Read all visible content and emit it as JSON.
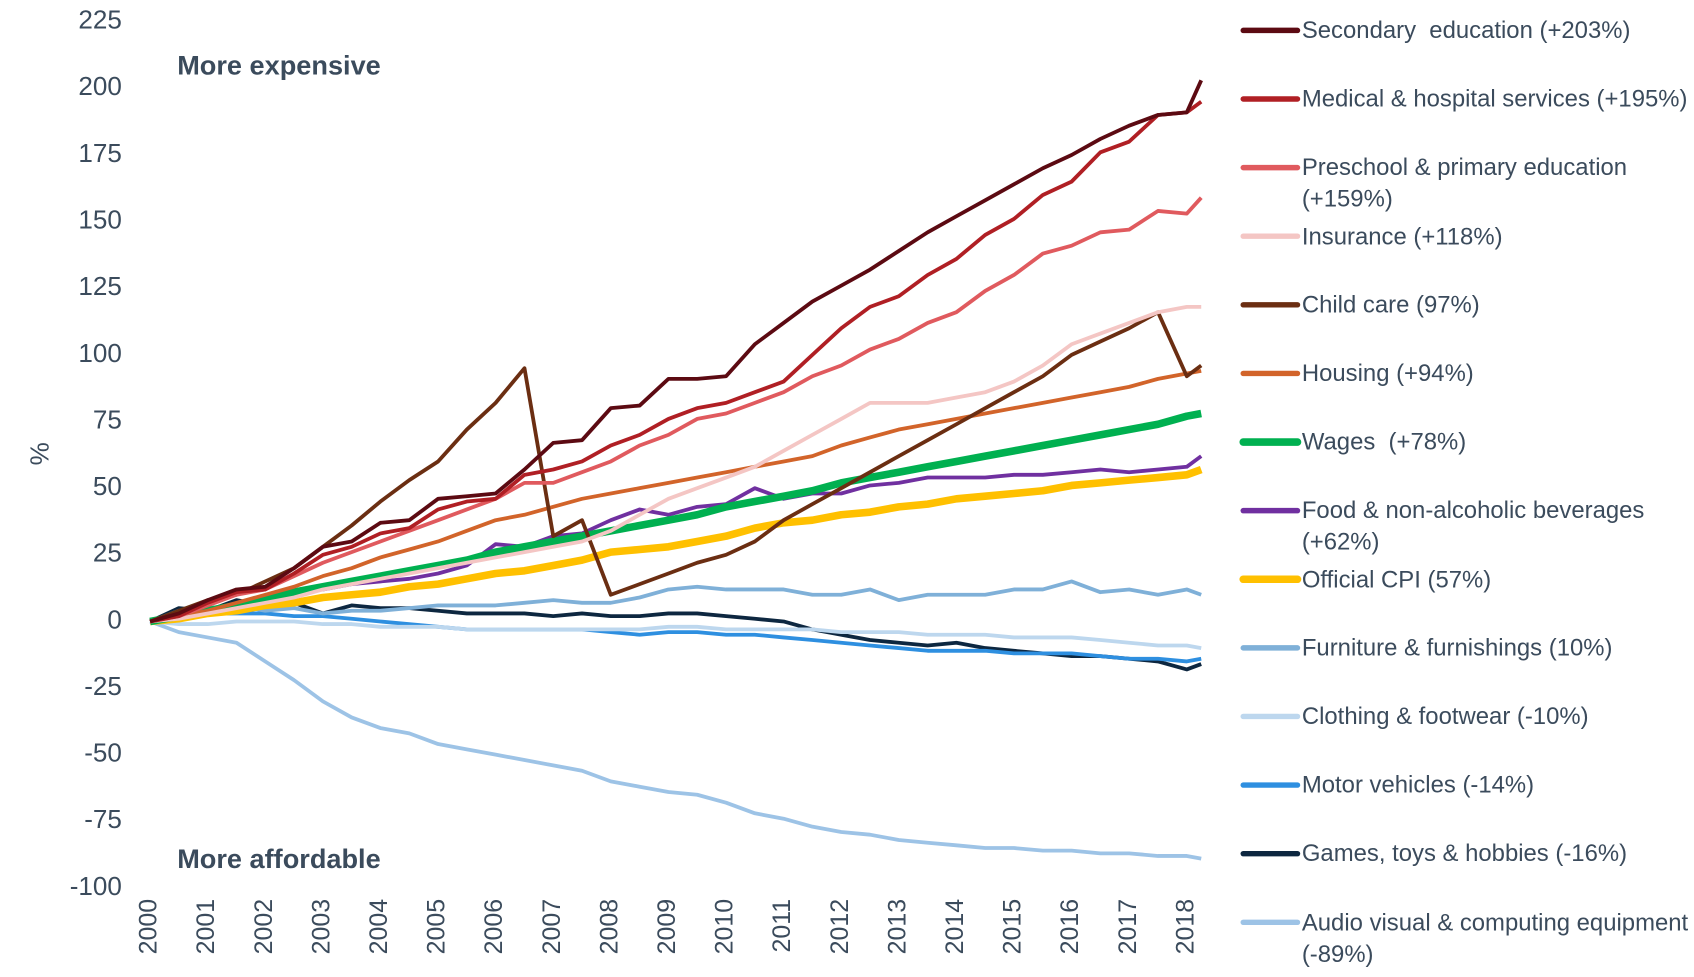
{
  "chart_data": {
    "type": "line",
    "y_label": "%",
    "annotations": [
      {
        "text": "More expensive",
        "color": "#a51c22"
      },
      {
        "text": "More affordable",
        "color": "#0d2740"
      }
    ],
    "x": [
      2000,
      2000.5,
      2001,
      2001.5,
      2002,
      2002.5,
      2003,
      2003.5,
      2004,
      2004.5,
      2005,
      2005.5,
      2006,
      2006.5,
      2007,
      2007.5,
      2008,
      2008.5,
      2009,
      2009.5,
      2010,
      2010.5,
      2011,
      2011.5,
      2012,
      2012.5,
      2013,
      2013.5,
      2014,
      2014.5,
      2015,
      2015.5,
      2016,
      2016.5,
      2017,
      2017.5,
      2018,
      2018.25
    ],
    "xlim": [
      2000,
      2018.25
    ],
    "xticks": [
      2000,
      2001,
      2002,
      2003,
      2004,
      2005,
      2006,
      2007,
      2008,
      2009,
      2010,
      2011,
      2012,
      2013,
      2014,
      2015,
      2016,
      2017,
      2018
    ],
    "ylim": [
      -100,
      225
    ],
    "yticks": [
      -100,
      -75,
      -50,
      -25,
      0,
      25,
      50,
      75,
      100,
      125,
      150,
      175,
      200,
      225
    ],
    "grid": false,
    "legend": "right",
    "series": [
      {
        "name": "Secondary  education (+203%)",
        "color": "#5c0a12",
        "values": [
          0,
          3,
          8,
          12,
          13,
          20,
          28,
          30,
          37,
          38,
          46,
          47,
          48,
          57,
          67,
          68,
          80,
          81,
          91,
          91,
          92,
          104,
          112,
          120,
          126,
          132,
          139,
          146,
          152,
          158,
          164,
          170,
          175,
          181,
          186,
          190,
          191,
          203
        ]
      },
      {
        "name": "Medical & hospital services (+195%)",
        "color": "#b01f24",
        "values": [
          0,
          2,
          7,
          11,
          12,
          18,
          25,
          28,
          33,
          35,
          42,
          45,
          46,
          55,
          57,
          60,
          66,
          70,
          76,
          80,
          82,
          86,
          90,
          100,
          110,
          118,
          122,
          130,
          136,
          145,
          151,
          160,
          165,
          176,
          180,
          190,
          191,
          195
        ]
      },
      {
        "name": "Preschool & primary education (+159%)",
        "color": "#e05a5e",
        "values": [
          0,
          2,
          6,
          10,
          12,
          17,
          22,
          26,
          30,
          34,
          38,
          42,
          46,
          52,
          52,
          56,
          60,
          66,
          70,
          76,
          78,
          82,
          86,
          92,
          96,
          102,
          106,
          112,
          116,
          124,
          130,
          138,
          141,
          146,
          147,
          154,
          153,
          159
        ]
      },
      {
        "name": "Insurance (+118%)",
        "color": "#f4c6c4",
        "values": [
          0,
          1,
          3,
          5,
          7,
          9,
          12,
          14,
          16,
          18,
          20,
          22,
          24,
          26,
          28,
          30,
          34,
          40,
          46,
          50,
          54,
          58,
          64,
          70,
          76,
          82,
          82,
          82,
          84,
          86,
          90,
          96,
          104,
          108,
          112,
          116,
          118,
          118
        ]
      },
      {
        "name": "Child care (97%)",
        "color": "#6b2e12",
        "values": [
          0,
          4,
          8,
          10,
          15,
          20,
          28,
          36,
          45,
          53,
          60,
          72,
          82,
          95,
          32,
          38,
          10,
          14,
          18,
          22,
          25,
          30,
          38,
          44,
          50,
          56,
          62,
          68,
          74,
          80,
          86,
          92,
          100,
          105,
          110,
          116,
          92,
          96
        ]
      },
      {
        "name": "Housing (+94%)",
        "color": "#d2642a",
        "values": [
          0,
          2,
          4,
          7,
          10,
          13,
          17,
          20,
          24,
          27,
          30,
          34,
          38,
          40,
          43,
          46,
          48,
          50,
          52,
          54,
          56,
          58,
          60,
          62,
          66,
          69,
          72,
          74,
          76,
          78,
          80,
          82,
          84,
          86,
          88,
          91,
          93,
          94
        ]
      },
      {
        "name": "Wages  (+78%)",
        "color": "#00b050",
        "width": 7,
        "values": [
          0,
          2,
          4,
          6,
          9,
          11,
          13,
          15,
          17,
          19,
          21,
          23,
          26,
          28,
          30,
          32,
          34,
          36,
          38,
          40,
          43,
          45,
          47,
          49,
          52,
          54,
          56,
          58,
          60,
          62,
          64,
          66,
          68,
          70,
          72,
          74,
          77,
          78
        ]
      },
      {
        "name": "Food & non-alcoholic beverages (+62%)",
        "color": "#7030a0",
        "values": [
          0,
          2,
          4,
          6,
          9,
          11,
          12,
          14,
          15,
          16,
          18,
          21,
          29,
          28,
          32,
          33,
          38,
          42,
          40,
          43,
          44,
          50,
          46,
          48,
          48,
          51,
          52,
          54,
          54,
          54,
          55,
          55,
          56,
          57,
          56,
          57,
          58,
          62
        ]
      },
      {
        "name": "Official CPI (57%)",
        "color": "#ffc000",
        "width": 7,
        "values": [
          0,
          1,
          3,
          4,
          6,
          7,
          9,
          10,
          11,
          13,
          14,
          16,
          18,
          19,
          21,
          23,
          26,
          27,
          28,
          30,
          32,
          35,
          37,
          38,
          40,
          41,
          43,
          44,
          46,
          47,
          48,
          49,
          51,
          52,
          53,
          54,
          55,
          57
        ]
      },
      {
        "name": "Furniture & furnishings (10%)",
        "color": "#7fb0d8",
        "values": [
          0,
          4,
          5,
          6,
          4,
          5,
          3,
          4,
          4,
          5,
          6,
          6,
          6,
          7,
          8,
          7,
          7,
          9,
          12,
          13,
          12,
          12,
          12,
          10,
          10,
          12,
          8,
          10,
          10,
          10,
          12,
          12,
          15,
          11,
          12,
          10,
          12,
          10
        ]
      },
      {
        "name": "Clothing & footwear (-10%)",
        "color": "#bdd7ee",
        "values": [
          0,
          -1,
          -1,
          0,
          0,
          0,
          -1,
          -1,
          -2,
          -2,
          -2,
          -3,
          -3,
          -3,
          -3,
          -3,
          -3,
          -3,
          -2,
          -2,
          -3,
          -3,
          -3,
          -3,
          -4,
          -4,
          -4,
          -5,
          -5,
          -5,
          -6,
          -6,
          -6,
          -7,
          -8,
          -9,
          -9,
          -10
        ]
      },
      {
        "name": "Motor vehicles (-14%)",
        "color": "#2e8fe0",
        "values": [
          0,
          2,
          3,
          3,
          3,
          2,
          2,
          1,
          0,
          -1,
          -2,
          -3,
          -3,
          -3,
          -3,
          -3,
          -4,
          -5,
          -4,
          -4,
          -5,
          -5,
          -6,
          -7,
          -8,
          -9,
          -10,
          -11,
          -11,
          -11,
          -12,
          -12,
          -12,
          -13,
          -14,
          -14,
          -15,
          -14
        ]
      },
      {
        "name": "Games, toys & hobbies (-16%)",
        "color": "#0d2740",
        "values": [
          0,
          5,
          4,
          8,
          6,
          7,
          3,
          6,
          5,
          5,
          4,
          3,
          3,
          3,
          2,
          3,
          2,
          2,
          3,
          3,
          2,
          1,
          0,
          -3,
          -5,
          -7,
          -8,
          -9,
          -8,
          -10,
          -11,
          -12,
          -13,
          -13,
          -14,
          -15,
          -18,
          -16
        ]
      },
      {
        "name": "Audio visual & computing equipment (-89%)",
        "color": "#9dc3e6",
        "values": [
          0,
          -4,
          -6,
          -8,
          -15,
          -22,
          -30,
          -36,
          -40,
          -42,
          -46,
          -48,
          -50,
          -52,
          -54,
          -56,
          -60,
          -62,
          -64,
          -65,
          -68,
          -72,
          -74,
          -77,
          -79,
          -80,
          -82,
          -83,
          -84,
          -85,
          -85,
          -86,
          -86,
          -87,
          -87,
          -88,
          -88,
          -89
        ]
      }
    ]
  }
}
